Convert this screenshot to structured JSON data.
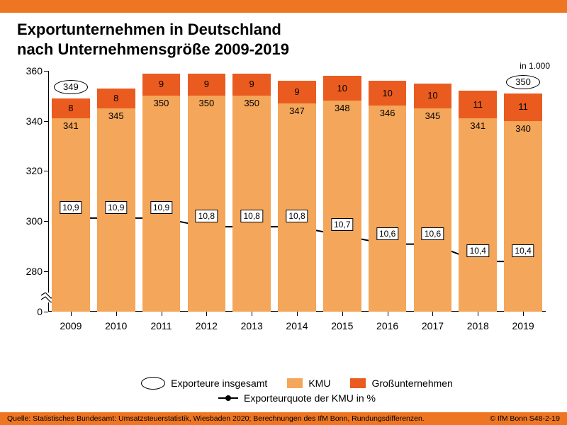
{
  "colors": {
    "accent": "#ee7622",
    "kmu": "#f4a65a",
    "gross": "#ea5b20",
    "line": "#000000",
    "background": "#ffffff"
  },
  "header": {
    "title_line1": "Exportunternehmen in Deutschland",
    "title_line2": "nach Unternehmensgröße 2009-2019",
    "unit": "in 1.000"
  },
  "chart": {
    "type": "stacked-bar-with-line",
    "y_axis": {
      "ticks": [
        0,
        280,
        300,
        320,
        340,
        360
      ],
      "break_between": [
        0,
        280
      ],
      "min": 0,
      "max": 360
    },
    "x_labels": [
      "2009",
      "2010",
      "2011",
      "2012",
      "2013",
      "2014",
      "2015",
      "2016",
      "2017",
      "2018",
      "2019"
    ],
    "kmu": [
      341,
      345,
      350,
      350,
      350,
      347,
      348,
      346,
      345,
      341,
      340
    ],
    "gross": [
      8,
      8,
      9,
      9,
      9,
      9,
      10,
      10,
      10,
      11,
      11
    ],
    "total_callouts": {
      "0": "349",
      "10": "350"
    },
    "line_values": [
      10.9,
      10.9,
      10.9,
      10.8,
      10.8,
      10.8,
      10.7,
      10.6,
      10.6,
      10.4,
      10.4
    ],
    "line_labels": [
      "10,9",
      "10,9",
      "10,9",
      "10,8",
      "10,8",
      "10,8",
      "10,7",
      "10,6",
      "10,6",
      "10,4",
      "10,4"
    ],
    "vis_min": 270,
    "vis_max": 360,
    "line_display_min": 10.0,
    "line_display_max": 12.6,
    "bar_width_pct": 84
  },
  "legend": {
    "total": "Exporteure insgesamt",
    "kmu": "KMU",
    "gross": "Großunternehmen",
    "line": "Exporteurquote der KMU in %"
  },
  "footer": {
    "source": "Quelle: Statistisches Bundesamt: Umsatzsteuerstatistik, Wiesbaden 2020; Berechnungen des IfM Bonn, Rundungsdifferenzen.",
    "credit": "© IfM Bonn  S48-2-19"
  }
}
